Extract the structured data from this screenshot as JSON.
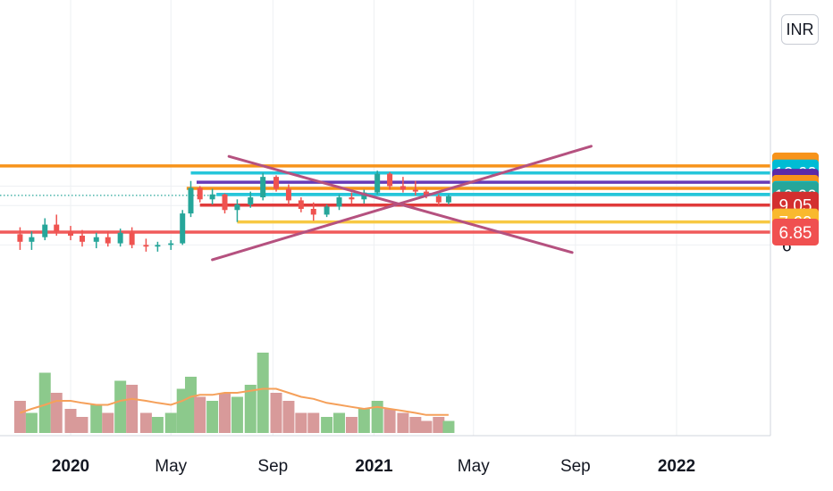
{
  "chart_data": {
    "type": "candlestick",
    "currency": "INR",
    "y_axis_labels": [
      "11",
      "9",
      "6"
    ],
    "x_axis_labels": [
      "2020",
      "May",
      "Sep",
      "2021",
      "May",
      "Sep",
      "2022"
    ],
    "current_price": 10.0,
    "levels": [
      {
        "label": "13.55",
        "value": 13.55,
        "color": "#f7931a",
        "label_color": "#f7931a",
        "start_date": "2019-10-01"
      },
      {
        "label": "12.60",
        "value": 12.6,
        "color": "#26c6da",
        "label_color": "#00bcd4",
        "start_date": "2020-05-25"
      },
      {
        "label": "11.45",
        "value": 11.45,
        "color": "#673ab7",
        "label_color": "#5b2aa8",
        "start_date": "2020-06-01"
      },
      {
        "label": "10.75",
        "value": 10.75,
        "color": "#f7931a",
        "label_color": "#f7931a",
        "start_date": "2020-05-20"
      },
      {
        "label": "10.10",
        "value": 10.1,
        "color": "#26c6da",
        "label_color": "#00bcd4",
        "start_date": "2020-06-25"
      },
      {
        "label": "10.00",
        "value": 10.0,
        "color": "#26a69a",
        "label_color": "#26a69a",
        "start_date": "2019-10-01"
      },
      {
        "label": "9.05",
        "value": 9.05,
        "color": "#e03b3b",
        "label_color": "#d32f2f",
        "start_date": "2020-06-05"
      },
      {
        "label": "7.60",
        "value": 7.6,
        "color": "#f7c843",
        "label_color": "#f9b92e",
        "start_date": "2020-07-20"
      },
      {
        "label": "6.85",
        "value": 6.85,
        "color": "#f05a5a",
        "label_color": "#f05050",
        "start_date": "2019-10-01"
      }
    ],
    "trendlines": [
      {
        "from": [
          "2020-07-10",
          14.95
        ],
        "to": [
          "2021-08-28",
          5.55
        ],
        "color": "#b5517f"
      },
      {
        "from": [
          "2020-06-20",
          5.15
        ],
        "to": [
          "2021-09-20",
          16.6
        ],
        "color": "#b5517f"
      }
    ],
    "candles": [
      {
        "date": "2019-11-01",
        "o": 6.7,
        "h": 7.2,
        "l": 5.7,
        "c": 6.2
      },
      {
        "date": "2019-11-15",
        "o": 6.2,
        "h": 6.9,
        "l": 5.7,
        "c": 6.5
      },
      {
        "date": "2019-12-01",
        "o": 6.5,
        "h": 7.9,
        "l": 6.3,
        "c": 7.4
      },
      {
        "date": "2019-12-15",
        "o": 7.4,
        "h": 8.2,
        "l": 6.6,
        "c": 6.9
      },
      {
        "date": "2020-01-01",
        "o": 6.9,
        "h": 7.3,
        "l": 6.3,
        "c": 6.6
      },
      {
        "date": "2020-01-15",
        "o": 6.6,
        "h": 7.0,
        "l": 5.9,
        "c": 6.2
      },
      {
        "date": "2020-02-01",
        "o": 6.2,
        "h": 6.8,
        "l": 5.8,
        "c": 6.5
      },
      {
        "date": "2020-02-15",
        "o": 6.5,
        "h": 6.9,
        "l": 5.9,
        "c": 6.1
      },
      {
        "date": "2020-03-01",
        "o": 6.1,
        "h": 7.1,
        "l": 5.9,
        "c": 6.8
      },
      {
        "date": "2020-03-15",
        "o": 6.8,
        "h": 7.2,
        "l": 5.8,
        "c": 6.0
      },
      {
        "date": "2020-04-01",
        "o": 6.0,
        "h": 6.4,
        "l": 5.6,
        "c": 5.9
      },
      {
        "date": "2020-04-15",
        "o": 5.9,
        "h": 6.2,
        "l": 5.6,
        "c": 6.0
      },
      {
        "date": "2020-05-01",
        "o": 6.0,
        "h": 6.3,
        "l": 5.7,
        "c": 6.1
      },
      {
        "date": "2020-05-15",
        "o": 6.1,
        "h": 8.6,
        "l": 6.0,
        "c": 8.3
      },
      {
        "date": "2020-05-25",
        "o": 8.3,
        "h": 11.6,
        "l": 8.0,
        "c": 10.8
      },
      {
        "date": "2020-06-05",
        "o": 10.8,
        "h": 11.0,
        "l": 9.3,
        "c": 9.6
      },
      {
        "date": "2020-06-20",
        "o": 9.6,
        "h": 10.7,
        "l": 9.1,
        "c": 10.1
      },
      {
        "date": "2020-07-05",
        "o": 10.1,
        "h": 10.2,
        "l": 8.3,
        "c": 8.6
      },
      {
        "date": "2020-07-20",
        "o": 8.6,
        "h": 9.6,
        "l": 7.6,
        "c": 9.1
      },
      {
        "date": "2020-08-05",
        "o": 9.1,
        "h": 10.4,
        "l": 8.8,
        "c": 9.8
      },
      {
        "date": "2020-08-20",
        "o": 9.8,
        "h": 12.6,
        "l": 9.5,
        "c": 12.1
      },
      {
        "date": "2020-09-05",
        "o": 12.1,
        "h": 12.3,
        "l": 10.4,
        "c": 10.7
      },
      {
        "date": "2020-09-20",
        "o": 10.7,
        "h": 11.2,
        "l": 9.1,
        "c": 9.5
      },
      {
        "date": "2020-10-05",
        "o": 9.5,
        "h": 9.8,
        "l": 8.4,
        "c": 8.7
      },
      {
        "date": "2020-10-20",
        "o": 8.7,
        "h": 9.3,
        "l": 7.7,
        "c": 8.2
      },
      {
        "date": "2020-11-05",
        "o": 8.2,
        "h": 9.1,
        "l": 8.0,
        "c": 8.9
      },
      {
        "date": "2020-11-20",
        "o": 8.9,
        "h": 10.1,
        "l": 8.6,
        "c": 9.8
      },
      {
        "date": "2020-12-05",
        "o": 9.8,
        "h": 10.3,
        "l": 9.2,
        "c": 9.6
      },
      {
        "date": "2020-12-20",
        "o": 9.6,
        "h": 10.6,
        "l": 9.2,
        "c": 10.3
      },
      {
        "date": "2021-01-05",
        "o": 10.3,
        "h": 12.9,
        "l": 10.1,
        "c": 12.5
      },
      {
        "date": "2021-01-20",
        "o": 12.5,
        "h": 12.7,
        "l": 10.6,
        "c": 11.0
      },
      {
        "date": "2021-02-05",
        "o": 11.0,
        "h": 12.1,
        "l": 10.3,
        "c": 10.6
      },
      {
        "date": "2021-02-20",
        "o": 10.6,
        "h": 11.6,
        "l": 10.0,
        "c": 10.4
      },
      {
        "date": "2021-03-05",
        "o": 10.4,
        "h": 10.6,
        "l": 9.7,
        "c": 9.9
      },
      {
        "date": "2021-03-20",
        "o": 9.9,
        "h": 10.1,
        "l": 9.0,
        "c": 9.3
      },
      {
        "date": "2021-04-01",
        "o": 9.3,
        "h": 10.1,
        "l": 9.1,
        "c": 9.9
      }
    ],
    "volumes": [
      {
        "date": "2019-11-01",
        "v": 0.8,
        "up": false
      },
      {
        "date": "2019-11-15",
        "v": 0.5,
        "up": true
      },
      {
        "date": "2019-12-01",
        "v": 1.5,
        "up": true
      },
      {
        "date": "2019-12-15",
        "v": 1.0,
        "up": false
      },
      {
        "date": "2020-01-01",
        "v": 0.6,
        "up": false
      },
      {
        "date": "2020-01-15",
        "v": 0.4,
        "up": false
      },
      {
        "date": "2020-02-01",
        "v": 0.7,
        "up": true
      },
      {
        "date": "2020-02-15",
        "v": 0.5,
        "up": false
      },
      {
        "date": "2020-03-01",
        "v": 1.3,
        "up": true
      },
      {
        "date": "2020-03-15",
        "v": 1.2,
        "up": false
      },
      {
        "date": "2020-04-01",
        "v": 0.5,
        "up": false
      },
      {
        "date": "2020-04-15",
        "v": 0.4,
        "up": true
      },
      {
        "date": "2020-05-01",
        "v": 0.5,
        "up": true
      },
      {
        "date": "2020-05-15",
        "v": 1.1,
        "up": true
      },
      {
        "date": "2020-05-25",
        "v": 1.4,
        "up": true
      },
      {
        "date": "2020-06-05",
        "v": 0.9,
        "up": false
      },
      {
        "date": "2020-06-20",
        "v": 0.8,
        "up": true
      },
      {
        "date": "2020-07-05",
        "v": 1.0,
        "up": false
      },
      {
        "date": "2020-07-20",
        "v": 0.9,
        "up": true
      },
      {
        "date": "2020-08-05",
        "v": 1.2,
        "up": true
      },
      {
        "date": "2020-08-20",
        "v": 2.0,
        "up": true
      },
      {
        "date": "2020-09-05",
        "v": 1.0,
        "up": false
      },
      {
        "date": "2020-09-20",
        "v": 0.8,
        "up": false
      },
      {
        "date": "2020-10-05",
        "v": 0.5,
        "up": false
      },
      {
        "date": "2020-10-20",
        "v": 0.5,
        "up": false
      },
      {
        "date": "2020-11-05",
        "v": 0.4,
        "up": true
      },
      {
        "date": "2020-11-20",
        "v": 0.5,
        "up": true
      },
      {
        "date": "2020-12-05",
        "v": 0.4,
        "up": false
      },
      {
        "date": "2020-12-20",
        "v": 0.6,
        "up": true
      },
      {
        "date": "2021-01-05",
        "v": 0.8,
        "up": true
      },
      {
        "date": "2021-01-20",
        "v": 0.6,
        "up": false
      },
      {
        "date": "2021-02-05",
        "v": 0.5,
        "up": false
      },
      {
        "date": "2021-02-20",
        "v": 0.4,
        "up": false
      },
      {
        "date": "2021-03-05",
        "v": 0.3,
        "up": false
      },
      {
        "date": "2021-03-20",
        "v": 0.4,
        "up": false
      },
      {
        "date": "2021-04-01",
        "v": 0.3,
        "up": true
      }
    ],
    "volume_ma": [
      0.5,
      0.6,
      0.7,
      0.8,
      0.8,
      0.75,
      0.7,
      0.7,
      0.8,
      0.85,
      0.8,
      0.75,
      0.7,
      0.8,
      0.9,
      0.95,
      0.95,
      1.0,
      1.0,
      1.05,
      1.1,
      1.1,
      1.0,
      0.9,
      0.85,
      0.75,
      0.7,
      0.65,
      0.6,
      0.65,
      0.6,
      0.55,
      0.5,
      0.45,
      0.45,
      0.45
    ],
    "colors": {
      "up": "#26a69a",
      "down": "#ef5350",
      "vol_up": "#8cc98c",
      "vol_down": "#d89a9a",
      "vol_ma": "#f5a05a"
    }
  }
}
